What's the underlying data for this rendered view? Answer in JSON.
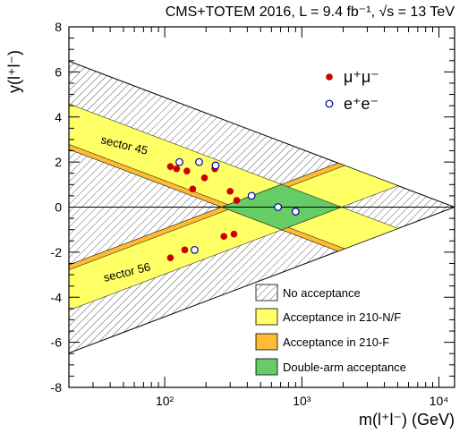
{
  "chart_data": {
    "type": "scatter",
    "title": "CMS+TOTEM 2016, L = 9.4 fb⁻¹, √s = 13 TeV",
    "xlabel": "m(l⁺l⁻) (GeV)",
    "ylabel": "y(l⁺l⁻)",
    "xscale": "log",
    "xlim": [
      20,
      13000
    ],
    "ylim": [
      -8,
      8
    ],
    "xticks": [
      {
        "v": 100,
        "label": "10²"
      },
      {
        "v": 1000,
        "label": "10³"
      },
      {
        "v": 10000,
        "label": "10⁴"
      }
    ],
    "yticks": [
      -8,
      -6,
      -4,
      -2,
      0,
      2,
      4,
      6,
      8
    ],
    "series": [
      {
        "name": "μ⁺μ⁻",
        "color": "#cc0000",
        "marker": "filled-circle",
        "points": [
          {
            "x": 110,
            "y": 1.8
          },
          {
            "x": 122,
            "y": 1.7
          },
          {
            "x": 145,
            "y": 1.6
          },
          {
            "x": 160,
            "y": 0.8
          },
          {
            "x": 195,
            "y": 1.3
          },
          {
            "x": 232,
            "y": 1.7
          },
          {
            "x": 300,
            "y": 0.7
          },
          {
            "x": 335,
            "y": 0.3
          },
          {
            "x": 270,
            "y": -1.3
          },
          {
            "x": 320,
            "y": -1.2
          },
          {
            "x": 140,
            "y": -1.9
          },
          {
            "x": 110,
            "y": -2.25
          }
        ]
      },
      {
        "name": "e⁺e⁻",
        "color": "#000099",
        "marker": "open-circle",
        "points": [
          {
            "x": 128,
            "y": 2.0
          },
          {
            "x": 178,
            "y": 2.0
          },
          {
            "x": 235,
            "y": 1.85
          },
          {
            "x": 430,
            "y": 0.5
          },
          {
            "x": 670,
            "y": 0.0
          },
          {
            "x": 900,
            "y": -0.2
          },
          {
            "x": 165,
            "y": -1.9
          }
        ]
      }
    ],
    "regions": [
      {
        "name": "No acceptance",
        "fill": "hatch"
      },
      {
        "name": "Acceptance in 210-N/F",
        "fill": "#ffff66"
      },
      {
        "name": "Acceptance in 210-F",
        "fill": "#ffbb33"
      },
      {
        "name": "Double-arm acceptance",
        "fill": "#66cc66"
      }
    ],
    "annotations": [
      "sector 45",
      "sector 56"
    ],
    "legend_position": "top-right and bottom-right"
  }
}
